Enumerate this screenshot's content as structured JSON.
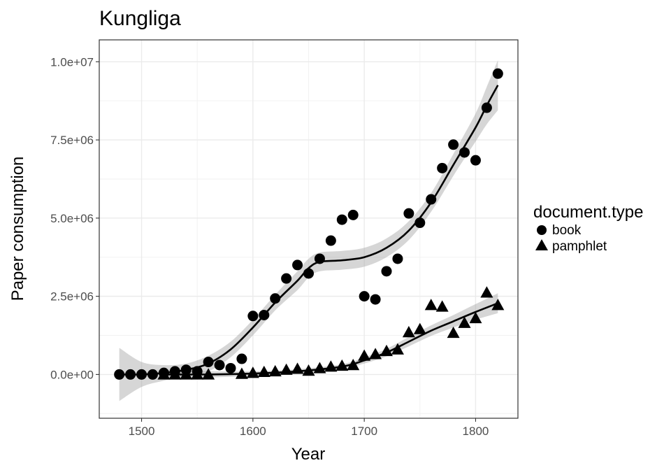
{
  "chart_data": {
    "type": "scatter",
    "title": "Kungliga",
    "xlabel": "Year",
    "ylabel": "Paper consumption",
    "xlim": [
      1462,
      1838
    ],
    "ylim": [
      -1400000,
      10700000
    ],
    "x_ticks": [
      1500,
      1600,
      1700,
      1800
    ],
    "x_tick_labels": [
      "1500",
      "1600",
      "1700",
      "1800"
    ],
    "y_ticks": [
      0,
      2500000,
      5000000,
      7500000,
      10000000
    ],
    "y_tick_labels": [
      "0.0e+00",
      "2.5e+06",
      "5.0e+06",
      "7.5e+06",
      "1.0e+07"
    ],
    "grid": true,
    "legend": {
      "title": "document.type",
      "placement": "right",
      "entries": [
        {
          "label": "book",
          "shape": "circle"
        },
        {
          "label": "pamphlet",
          "shape": "triangle"
        }
      ]
    },
    "series": [
      {
        "name": "book",
        "shape": "circle",
        "x": [
          1480,
          1490,
          1500,
          1510,
          1520,
          1530,
          1540,
          1550,
          1560,
          1570,
          1580,
          1590,
          1600,
          1610,
          1620,
          1630,
          1640,
          1650,
          1660,
          1670,
          1680,
          1690,
          1700,
          1710,
          1720,
          1730,
          1740,
          1750,
          1760,
          1770,
          1780,
          1790,
          1800,
          1810,
          1820
        ],
        "y": [
          0,
          0,
          0,
          0,
          50000,
          100000,
          150000,
          100000,
          400000,
          300000,
          200000,
          500000,
          1870000,
          1900000,
          2430000,
          3070000,
          3500000,
          3230000,
          3700000,
          4280000,
          4950000,
          5100000,
          2500000,
          2400000,
          3300000,
          3700000,
          5150000,
          4850000,
          5600000,
          6600000,
          7350000,
          7100000,
          6850000,
          8530000,
          9620000
        ],
        "smooth": {
          "x": [
            1480,
            1500,
            1520,
            1540,
            1560,
            1580,
            1600,
            1620,
            1640,
            1650,
            1660,
            1680,
            1700,
            1720,
            1740,
            1760,
            1780,
            1800,
            1810,
            1820
          ],
          "y": [
            0,
            0,
            50000,
            150000,
            350000,
            800000,
            1500000,
            2300000,
            3000000,
            3400000,
            3600000,
            3650000,
            3750000,
            4050000,
            4600000,
            5500000,
            6700000,
            7900000,
            8600000,
            9250000
          ],
          "se_upper": [
            850000,
            400000,
            300000,
            350000,
            600000,
            1050000,
            1750000,
            2550000,
            3300000,
            3700000,
            3900000,
            3950000,
            4050000,
            4350000,
            4900000,
            5800000,
            7050000,
            8350000,
            9200000,
            10050000
          ],
          "se_lower": [
            -850000,
            -400000,
            -200000,
            -50000,
            100000,
            550000,
            1250000,
            2050000,
            2700000,
            3100000,
            3300000,
            3350000,
            3450000,
            3750000,
            4300000,
            5200000,
            6350000,
            7450000,
            8000000,
            8450000
          ]
        }
      },
      {
        "name": "pamphlet",
        "shape": "triangle",
        "x": [
          1520,
          1530,
          1540,
          1550,
          1560,
          1590,
          1600,
          1610,
          1620,
          1630,
          1640,
          1650,
          1660,
          1670,
          1680,
          1690,
          1700,
          1710,
          1720,
          1730,
          1740,
          1750,
          1760,
          1770,
          1780,
          1790,
          1800,
          1810,
          1820
        ],
        "y": [
          0,
          0,
          0,
          0,
          0,
          20000,
          50000,
          80000,
          100000,
          150000,
          180000,
          120000,
          200000,
          250000,
          280000,
          300000,
          600000,
          650000,
          750000,
          800000,
          1350000,
          1450000,
          2220000,
          2170000,
          1330000,
          1650000,
          1800000,
          2620000,
          2220000
        ],
        "smooth": {
          "x": [
            1520,
            1560,
            1600,
            1640,
            1680,
            1700,
            1720,
            1740,
            1760,
            1780,
            1800,
            1820
          ],
          "y": [
            0,
            0,
            30000,
            100000,
            250000,
            450000,
            700000,
            1050000,
            1400000,
            1700000,
            2000000,
            2280000
          ],
          "se_upper": [
            150000,
            100000,
            100000,
            170000,
            330000,
            550000,
            820000,
            1200000,
            1570000,
            1900000,
            2250000,
            2600000
          ],
          "se_lower": [
            -150000,
            -100000,
            -40000,
            30000,
            170000,
            350000,
            580000,
            900000,
            1230000,
            1500000,
            1750000,
            1960000
          ]
        }
      }
    ]
  }
}
